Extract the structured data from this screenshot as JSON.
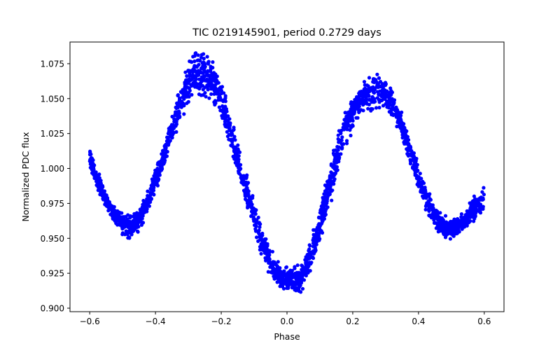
{
  "chart_data": {
    "type": "scatter",
    "title": "TIC 0219145901, period 0.2729 days",
    "xlabel": "Phase",
    "ylabel": "Normalized PDC flux",
    "xlim": [
      -0.66,
      0.66
    ],
    "ylim": [
      0.8975,
      1.0905
    ],
    "xticks": [
      -0.6,
      -0.4,
      -0.2,
      0.0,
      0.2,
      0.4,
      0.6
    ],
    "xtick_labels": [
      "−0.6",
      "−0.4",
      "−0.2",
      "0.0",
      "0.2",
      "0.4",
      "0.6"
    ],
    "yticks": [
      0.9,
      0.925,
      0.95,
      0.975,
      1.0,
      1.025,
      1.05,
      1.075
    ],
    "ytick_labels": [
      "0.900",
      "0.925",
      "0.950",
      "0.975",
      "1.000",
      "1.025",
      "1.050",
      "1.075"
    ],
    "grid": false,
    "marker_color": "#0000ff",
    "series": [
      {
        "x": [
          -0.6,
          -0.58,
          -0.56,
          -0.54,
          -0.52,
          -0.5,
          -0.48,
          -0.46,
          -0.44,
          -0.42,
          -0.4,
          -0.38,
          -0.36,
          -0.34,
          -0.32,
          -0.3,
          -0.28,
          -0.26,
          -0.24,
          -0.22,
          -0.2,
          -0.18,
          -0.16,
          -0.14,
          -0.12,
          -0.1,
          -0.08,
          -0.06,
          -0.04,
          -0.02,
          0.0,
          0.02,
          0.04,
          0.06,
          0.08,
          0.1,
          0.12,
          0.14,
          0.16,
          0.18,
          0.2,
          0.22,
          0.24,
          0.26,
          0.28,
          0.3,
          0.32,
          0.34,
          0.36,
          0.38,
          0.4,
          0.42,
          0.44,
          0.46,
          0.48,
          0.5,
          0.52,
          0.54,
          0.56,
          0.58,
          0.6
        ],
        "y_center": [
          1.008,
          0.994,
          0.982,
          0.972,
          0.965,
          0.96,
          0.958,
          0.961,
          0.968,
          0.978,
          0.991,
          1.005,
          1.02,
          1.035,
          1.05,
          1.06,
          1.066,
          1.068,
          1.066,
          1.06,
          1.048,
          1.032,
          1.015,
          0.998,
          0.982,
          0.966,
          0.95,
          0.938,
          0.928,
          0.922,
          0.92,
          0.92,
          0.921,
          0.93,
          0.944,
          0.96,
          0.978,
          0.997,
          1.015,
          1.03,
          1.041,
          1.048,
          1.052,
          1.054,
          1.055,
          1.053,
          1.047,
          1.037,
          1.023,
          1.008,
          0.994,
          0.981,
          0.97,
          0.962,
          0.958,
          0.957,
          0.959,
          0.962,
          0.968,
          0.974,
          0.978
        ],
        "y_spread": [
          0.01,
          0.009,
          0.009,
          0.009,
          0.009,
          0.01,
          0.011,
          0.011,
          0.011,
          0.011,
          0.011,
          0.012,
          0.013,
          0.014,
          0.017,
          0.02,
          0.022,
          0.022,
          0.021,
          0.02,
          0.018,
          0.016,
          0.016,
          0.016,
          0.016,
          0.015,
          0.014,
          0.013,
          0.012,
          0.011,
          0.011,
          0.011,
          0.012,
          0.013,
          0.015,
          0.017,
          0.018,
          0.018,
          0.018,
          0.017,
          0.016,
          0.016,
          0.016,
          0.016,
          0.016,
          0.014,
          0.013,
          0.012,
          0.012,
          0.012,
          0.011,
          0.011,
          0.01,
          0.01,
          0.01,
          0.01,
          0.01,
          0.01,
          0.011,
          0.012,
          0.014
        ]
      }
    ]
  }
}
